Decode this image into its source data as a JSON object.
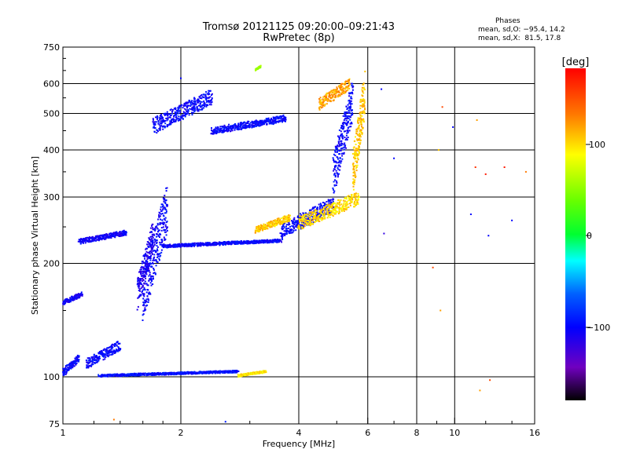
{
  "header": {
    "title": "Tromsø 20121125 09:20:00–09:21:43",
    "subtitle": "RwPretec (8p)"
  },
  "stats": {
    "label": "Phases",
    "line_o": "mean, sd,O: −95.4, 14.2",
    "line_x": "mean, sd,X:  81.5, 17.8"
  },
  "colorbar": {
    "unit": "[deg]",
    "ticks": [
      "100",
      "0",
      "−100"
    ],
    "range": [
      -180,
      180
    ]
  },
  "chart_data": {
    "type": "scatter",
    "title": "Tromsø 20121125 09:20:00–09:21:43",
    "subtitle": "RwPretec (8p)",
    "xlabel": "Frequency [MHz]",
    "ylabel": "Stationary phase Virtual Height [km]",
    "x_scale": "log",
    "y_scale": "log",
    "xlim": [
      1,
      16
    ],
    "ylim": [
      75,
      750
    ],
    "x_ticks": [
      1,
      2,
      4,
      6,
      8,
      10,
      16
    ],
    "x_tick_labels": [
      "1",
      "2",
      "4",
      "6",
      "8",
      "10",
      "16"
    ],
    "y_ticks": [
      75,
      100,
      200,
      300,
      400,
      500,
      600,
      750
    ],
    "y_tick_labels": [
      "75",
      "100",
      "200",
      "300",
      "400",
      "500",
      "600",
      "750"
    ],
    "grid": true,
    "color_variable": "Phase [deg]",
    "traces": [
      {
        "f_range": [
          1.0,
          1.1
        ],
        "h_range": [
          100,
          115
        ],
        "phase": -100
      },
      {
        "f_range": [
          1.15,
          1.4
        ],
        "h_range": [
          105,
          125
        ],
        "phase": -100
      },
      {
        "f_range": [
          1.0,
          1.12
        ],
        "h_range": [
          155,
          168
        ],
        "phase": -105
      },
      {
        "f_range": [
          1.1,
          1.45
        ],
        "h_range": [
          225,
          245
        ],
        "phase": -105
      },
      {
        "f_range": [
          1.25,
          2.8
        ],
        "h_range": [
          100,
          104
        ],
        "phase": -95
      },
      {
        "f_range": [
          2.8,
          3.3
        ],
        "h_range": [
          100,
          104
        ],
        "phase": 100
      },
      {
        "f_range": [
          1.6,
          1.85
        ],
        "h_range": [
          140,
          330
        ],
        "phase": -100
      },
      {
        "f_range": [
          1.55,
          1.7
        ],
        "h_range": [
          150,
          260
        ],
        "phase": -110
      },
      {
        "f_range": [
          1.8,
          3.6
        ],
        "h_range": [
          220,
          232
        ],
        "phase": -100
      },
      {
        "f_range": [
          3.6,
          4.9
        ],
        "h_range": [
          232,
          300
        ],
        "phase": -100
      },
      {
        "f_range": [
          4.9,
          5.5
        ],
        "h_range": [
          300,
          620
        ],
        "phase": -100
      },
      {
        "f_range": [
          4.0,
          5.7
        ],
        "h_range": [
          245,
          310
        ],
        "phase": 105
      },
      {
        "f_range": [
          5.5,
          5.9
        ],
        "h_range": [
          300,
          650
        ],
        "phase": 110
      },
      {
        "f_range": [
          3.1,
          3.8
        ],
        "h_range": [
          240,
          270
        ],
        "phase": 110
      },
      {
        "f_range": [
          3.1,
          3.2
        ],
        "h_range": [
          650,
          670
        ],
        "phase": 60
      },
      {
        "f_range": [
          1.7,
          2.4
        ],
        "h_range": [
          440,
          580
        ],
        "phase": -100
      },
      {
        "f_range": [
          2.4,
          3.7
        ],
        "h_range": [
          440,
          495
        ],
        "phase": -100
      },
      {
        "f_range": [
          4.5,
          5.4
        ],
        "h_range": [
          510,
          620
        ],
        "phase": 120
      }
    ],
    "scatter_points": [
      {
        "f": 6.5,
        "h": 580,
        "phase": -100
      },
      {
        "f": 7.0,
        "h": 380,
        "phase": -100
      },
      {
        "f": 9.3,
        "h": 520,
        "phase": 150
      },
      {
        "f": 9.1,
        "h": 400,
        "phase": 110
      },
      {
        "f": 9.9,
        "h": 460,
        "phase": -100
      },
      {
        "f": 11.4,
        "h": 480,
        "phase": 120
      },
      {
        "f": 11.3,
        "h": 360,
        "phase": 160
      },
      {
        "f": 12.0,
        "h": 345,
        "phase": 170
      },
      {
        "f": 13.4,
        "h": 360,
        "phase": 170
      },
      {
        "f": 15.2,
        "h": 350,
        "phase": 130
      },
      {
        "f": 11.0,
        "h": 270,
        "phase": -100
      },
      {
        "f": 12.2,
        "h": 237,
        "phase": -100
      },
      {
        "f": 14.0,
        "h": 260,
        "phase": -100
      },
      {
        "f": 8.8,
        "h": 195,
        "phase": 150
      },
      {
        "f": 9.2,
        "h": 150,
        "phase": 120
      },
      {
        "f": 11.6,
        "h": 92,
        "phase": 120
      },
      {
        "f": 12.3,
        "h": 98,
        "phase": 150
      },
      {
        "f": 6.6,
        "h": 240,
        "phase": -120
      },
      {
        "f": 2.6,
        "h": 76,
        "phase": -90
      },
      {
        "f": 1.35,
        "h": 77,
        "phase": 130
      },
      {
        "f": 2.0,
        "h": 620,
        "phase": -100
      }
    ]
  }
}
